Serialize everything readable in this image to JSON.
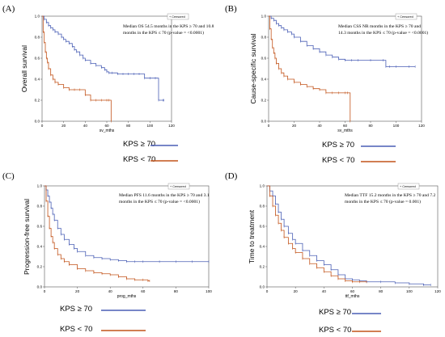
{
  "chart_data": [
    {
      "type": "line",
      "panel_label": "(A)",
      "xlabel": "sv_mths",
      "ylabel": "Overall survival",
      "xlim": [
        0,
        120
      ],
      "ylim": [
        0,
        1
      ],
      "xticks": [
        0,
        20,
        40,
        60,
        80,
        100,
        120
      ],
      "yticks": [
        0.0,
        0.2,
        0.4,
        0.6,
        0.8,
        1.0
      ],
      "censored_legend": "+ Censored",
      "note_lines": [
        "Median OS 54.5 months in the KPS ≥ 70 and 10.8",
        "months in the KPS ≤ 70 (p-value = <0.0001)"
      ],
      "series": [
        {
          "name": "KPS ≥ 70",
          "color": "#4a5fb5",
          "x": [
            0,
            2,
            4,
            6,
            8,
            10,
            12,
            15,
            18,
            20,
            22,
            25,
            28,
            30,
            32,
            35,
            38,
            40,
            45,
            50,
            55,
            58,
            60,
            62,
            65,
            70,
            75,
            80,
            85,
            90,
            95,
            100,
            105,
            108,
            112,
            113
          ],
          "y": [
            1.0,
            0.97,
            0.94,
            0.91,
            0.89,
            0.87,
            0.85,
            0.83,
            0.8,
            0.78,
            0.76,
            0.74,
            0.71,
            0.68,
            0.66,
            0.63,
            0.6,
            0.58,
            0.55,
            0.53,
            0.51,
            0.49,
            0.47,
            0.46,
            0.46,
            0.45,
            0.45,
            0.45,
            0.45,
            0.45,
            0.41,
            0.41,
            0.41,
            0.2,
            0.2,
            0.2
          ]
        },
        {
          "name": "KPS < 70",
          "color": "#c2531a",
          "x": [
            0,
            1,
            2,
            3,
            4,
            5,
            6,
            8,
            10,
            12,
            15,
            20,
            25,
            30,
            35,
            40,
            45,
            50,
            55,
            60,
            62,
            64
          ],
          "y": [
            1.0,
            0.85,
            0.75,
            0.66,
            0.6,
            0.56,
            0.5,
            0.44,
            0.4,
            0.37,
            0.35,
            0.32,
            0.3,
            0.3,
            0.3,
            0.25,
            0.2,
            0.2,
            0.2,
            0.2,
            0.2,
            0.0
          ]
        }
      ]
    },
    {
      "type": "line",
      "panel_label": "(B)",
      "xlabel": "sv_mths",
      "ylabel": "Cause-specific survival",
      "xlim": [
        0,
        120
      ],
      "ylim": [
        0,
        1
      ],
      "xticks": [
        0,
        20,
        40,
        60,
        80,
        100,
        120
      ],
      "yticks": [
        0.0,
        0.2,
        0.4,
        0.6,
        0.8,
        1.0
      ],
      "censored_legend": "+ Censored",
      "note_lines": [
        "Median CSS NR months in the KPS ≥ 70 and",
        "14.3 months in the KPS ≤ 70 (p-value = <0.0001)"
      ],
      "series": [
        {
          "name": "KPS ≥ 70",
          "color": "#4a5fb5",
          "x": [
            0,
            2,
            4,
            6,
            8,
            10,
            12,
            15,
            18,
            20,
            25,
            30,
            35,
            40,
            45,
            50,
            55,
            60,
            65,
            70,
            80,
            90,
            92,
            95,
            100,
            110,
            115
          ],
          "y": [
            1.0,
            0.98,
            0.96,
            0.93,
            0.91,
            0.89,
            0.87,
            0.85,
            0.83,
            0.8,
            0.76,
            0.72,
            0.69,
            0.66,
            0.63,
            0.61,
            0.59,
            0.58,
            0.58,
            0.58,
            0.58,
            0.58,
            0.52,
            0.52,
            0.52,
            0.52,
            0.52
          ]
        },
        {
          "name": "KPS < 70",
          "color": "#c2531a",
          "x": [
            0,
            1,
            2,
            3,
            4,
            5,
            6,
            8,
            10,
            12,
            15,
            20,
            25,
            30,
            35,
            40,
            45,
            50,
            55,
            60,
            62,
            64
          ],
          "y": [
            1.0,
            0.88,
            0.78,
            0.7,
            0.65,
            0.6,
            0.55,
            0.5,
            0.46,
            0.43,
            0.4,
            0.37,
            0.35,
            0.33,
            0.31,
            0.3,
            0.27,
            0.27,
            0.27,
            0.27,
            0.27,
            0.0
          ]
        }
      ]
    },
    {
      "type": "line",
      "panel_label": "(C)",
      "xlabel": "prog_mths",
      "ylabel": "Progression-free survival",
      "xlim": [
        0,
        100
      ],
      "ylim": [
        0,
        1
      ],
      "xticks": [
        0,
        20,
        40,
        60,
        80,
        100
      ],
      "yticks": [
        0.0,
        0.2,
        0.4,
        0.6,
        0.8,
        1.0
      ],
      "censored_legend": "+ Censored",
      "note_lines": [
        "Median PFS 11.6 months in the KPS ≥ 70 and 3.1",
        "months in the KPS ≤ 70 (p-value = <0.0001)"
      ],
      "series": [
        {
          "name": "KPS ≥ 70",
          "color": "#4a5fb5",
          "x": [
            0,
            1,
            2,
            3,
            4,
            5,
            6,
            8,
            10,
            12,
            15,
            18,
            20,
            25,
            30,
            35,
            40,
            45,
            50,
            55,
            60,
            70,
            80,
            90,
            100
          ],
          "y": [
            1.0,
            0.96,
            0.9,
            0.84,
            0.78,
            0.72,
            0.66,
            0.58,
            0.52,
            0.47,
            0.42,
            0.38,
            0.35,
            0.31,
            0.29,
            0.28,
            0.27,
            0.26,
            0.25,
            0.25,
            0.25,
            0.25,
            0.25,
            0.25,
            0.25
          ]
        },
        {
          "name": "KPS < 70",
          "color": "#c2531a",
          "x": [
            0,
            1,
            2,
            3,
            4,
            5,
            6,
            8,
            10,
            12,
            15,
            20,
            25,
            30,
            35,
            40,
            45,
            50,
            55,
            60,
            63,
            64
          ],
          "y": [
            1.0,
            0.85,
            0.7,
            0.58,
            0.5,
            0.44,
            0.38,
            0.32,
            0.28,
            0.25,
            0.22,
            0.18,
            0.16,
            0.14,
            0.13,
            0.12,
            0.1,
            0.08,
            0.07,
            0.07,
            0.06,
            0.06
          ]
        }
      ]
    },
    {
      "type": "line",
      "panel_label": "(D)",
      "xlabel": "ttf_mths",
      "ylabel": "Time to treatment",
      "xlim": [
        0,
        120
      ],
      "ylim": [
        0,
        1
      ],
      "xticks": [
        0,
        20,
        40,
        60,
        80,
        100,
        120
      ],
      "yticks": [
        0.0,
        0.2,
        0.4,
        0.6,
        0.8,
        1.0
      ],
      "censored_legend": "+ Censored",
      "note_lines": [
        "Median TTF 15.2 months in the KPS ≥ 70 and 7.2",
        "months in the KPS ≤ 70 (p-value = 0.001)"
      ],
      "series": [
        {
          "name": "KPS ≥ 70",
          "color": "#4a5fb5",
          "x": [
            0,
            2,
            4,
            6,
            8,
            10,
            12,
            15,
            18,
            20,
            25,
            30,
            35,
            40,
            45,
            50,
            55,
            60,
            65,
            70,
            80,
            90,
            100,
            110,
            115
          ],
          "y": [
            1.0,
            0.95,
            0.9,
            0.82,
            0.74,
            0.67,
            0.6,
            0.53,
            0.47,
            0.43,
            0.36,
            0.31,
            0.26,
            0.22,
            0.17,
            0.12,
            0.08,
            0.07,
            0.06,
            0.05,
            0.05,
            0.04,
            0.03,
            0.02,
            0.02
          ]
        },
        {
          "name": "KPS < 70",
          "color": "#c2531a",
          "x": [
            0,
            2,
            4,
            6,
            8,
            10,
            12,
            15,
            18,
            20,
            25,
            30,
            35,
            40,
            45,
            50,
            55,
            60,
            65,
            70
          ],
          "y": [
            1.0,
            0.9,
            0.8,
            0.71,
            0.63,
            0.56,
            0.49,
            0.43,
            0.38,
            0.34,
            0.28,
            0.23,
            0.19,
            0.15,
            0.11,
            0.08,
            0.06,
            0.05,
            0.05,
            0.05
          ]
        }
      ]
    }
  ]
}
